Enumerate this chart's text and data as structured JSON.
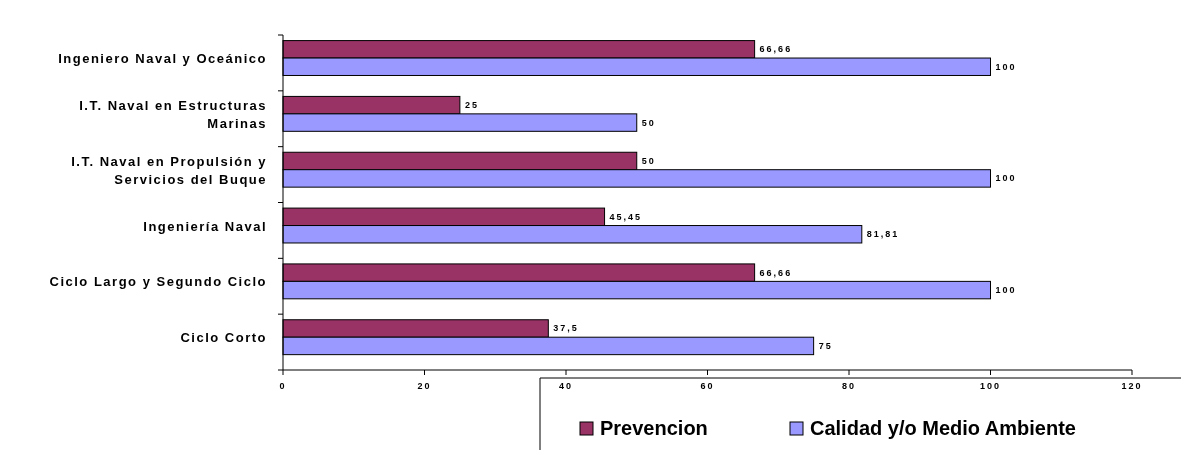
{
  "chart_data": {
    "type": "bar",
    "orientation": "horizontal",
    "categories": [
      "Ingeniero Naval y Oceánico",
      "I.T. Naval en Estructuras Marinas",
      "I.T. Naval en Propulsión y Servicios del Buque",
      "Ingeniería Naval",
      "Ciclo Largo y Segundo Ciclo",
      "Ciclo Corto"
    ],
    "series": [
      {
        "name": "Prevencion",
        "color": "#993366",
        "values": [
          66.66,
          25,
          50,
          45.45,
          66.66,
          37.5
        ],
        "value_labels": [
          "66,66",
          "25",
          "50",
          "45,45",
          "66,66",
          "37,5"
        ]
      },
      {
        "name": "Calidad y/o Medio Ambiente",
        "color": "#9999ff",
        "values": [
          100,
          50,
          100,
          81.81,
          100,
          75
        ],
        "value_labels": [
          "100",
          "50",
          "100",
          "81,81",
          "100",
          "75"
        ]
      }
    ],
    "xlim": [
      0,
      120
    ],
    "xticks": [
      0,
      20,
      40,
      60,
      80,
      100,
      120
    ],
    "grid": false,
    "legend": "bottom right"
  }
}
